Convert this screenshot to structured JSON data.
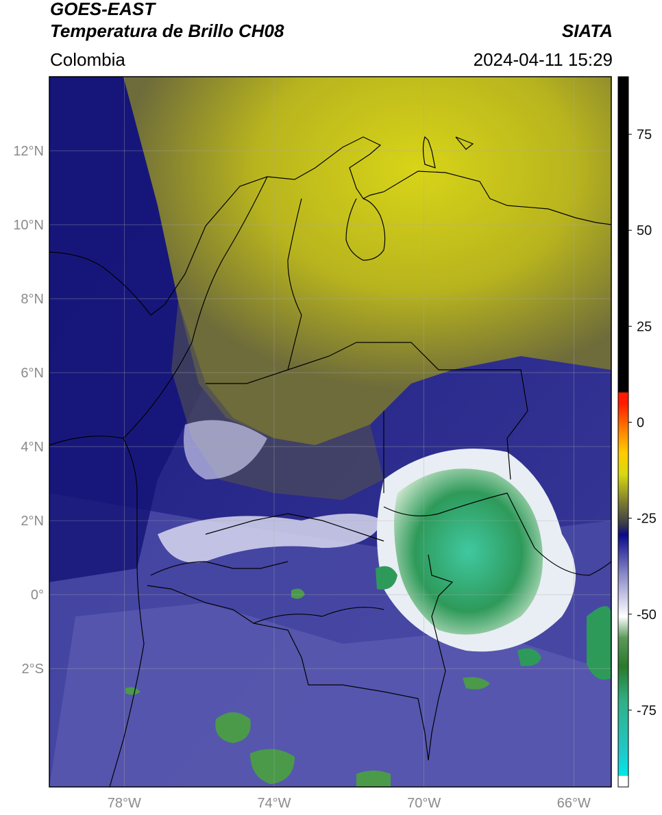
{
  "header": {
    "satellite": "GOES-EAST",
    "product": "Temperatura de Brillo CH08",
    "agency": "SIATA",
    "region": "Colombia",
    "datetime": "2024-04-11 15:29"
  },
  "map": {
    "lon_range": [
      -80,
      -65
    ],
    "lat_range": [
      -5.2,
      14
    ],
    "lat_labels": [
      "12°N",
      "10°N",
      "8°N",
      "6°N",
      "4°N",
      "2°N",
      "0°",
      "2°S"
    ],
    "lat_values": [
      12,
      10,
      8,
      6,
      4,
      2,
      0,
      -2
    ],
    "lon_labels": [
      "78°W",
      "74°W",
      "70°W",
      "66°W"
    ],
    "lon_values": [
      -78,
      -74,
      -70,
      -66
    ]
  },
  "colorbar": {
    "labels": [
      "75",
      "50",
      "25",
      "0",
      "-25",
      "-50",
      "-75"
    ],
    "values": [
      75,
      50,
      25,
      0,
      -25,
      -50,
      -75
    ],
    "range": [
      -95,
      90
    ],
    "colors": {
      "black": "#000000",
      "red": "#ff1a00",
      "orange": "#ff9900",
      "yellow": "#e8e000",
      "olive": "#8c8a20",
      "gray": "#5a5a50",
      "navy": "#0a0a8a",
      "lavender": "#8888c8",
      "white": "#ffffff",
      "green": "#2a7a2a",
      "teal": "#30c8a8",
      "cyan": "#00e8e8"
    }
  }
}
